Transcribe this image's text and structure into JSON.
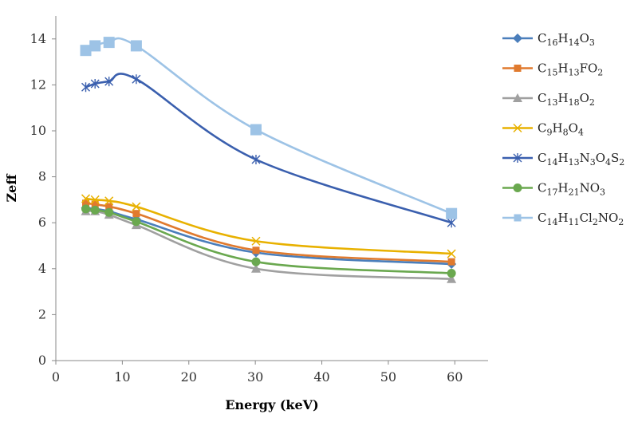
{
  "chart_data": {
    "type": "line",
    "xlabel": "Energy (keV)",
    "ylabel": "Zeff",
    "xlim": [
      0,
      65
    ],
    "ylim": [
      0,
      15
    ],
    "xticks": [
      0,
      10,
      20,
      30,
      40,
      50,
      60
    ],
    "yticks": [
      0,
      2,
      4,
      6,
      8,
      10,
      12,
      14
    ],
    "grid": false,
    "legend_position": "right",
    "x": [
      4.5,
      5.9,
      8.0,
      12.1,
      30.1,
      59.5
    ],
    "series": [
      {
        "name": "C16H14O3",
        "label_parts": [
          [
            "C",
            ""
          ],
          [
            "16",
            "sub"
          ],
          [
            "H",
            ""
          ],
          [
            "14",
            "sub"
          ],
          [
            "O",
            ""
          ],
          [
            "3",
            "sub"
          ]
        ],
        "color": "#4a7ebb",
        "marker": "diamond",
        "values": [
          6.65,
          6.6,
          6.5,
          6.15,
          4.7,
          4.2
        ]
      },
      {
        "name": "C15H13FO2",
        "label_parts": [
          [
            "C",
            ""
          ],
          [
            "15",
            "sub"
          ],
          [
            "H",
            ""
          ],
          [
            "13",
            "sub"
          ],
          [
            "FO",
            ""
          ],
          [
            "2",
            "sub"
          ]
        ],
        "color": "#e07a2e",
        "marker": "square",
        "values": [
          6.85,
          6.8,
          6.7,
          6.4,
          4.8,
          4.3
        ]
      },
      {
        "name": "C13H18O2",
        "label_parts": [
          [
            "C",
            ""
          ],
          [
            "13",
            "sub"
          ],
          [
            "H",
            ""
          ],
          [
            "18",
            "sub"
          ],
          [
            "O",
            ""
          ],
          [
            "2",
            "sub"
          ]
        ],
        "color": "#a0a0a0",
        "marker": "triangle",
        "values": [
          6.5,
          6.5,
          6.35,
          5.9,
          4.0,
          3.55
        ]
      },
      {
        "name": "C9H8O4",
        "label_parts": [
          [
            "C",
            ""
          ],
          [
            "9",
            "sub"
          ],
          [
            "H",
            ""
          ],
          [
            "8",
            "sub"
          ],
          [
            "O",
            ""
          ],
          [
            "4",
            "sub"
          ]
        ],
        "color": "#e8b100",
        "marker": "x",
        "values": [
          7.05,
          7.0,
          6.95,
          6.7,
          5.2,
          4.65
        ]
      },
      {
        "name": "C14H13N3O4S2",
        "label_parts": [
          [
            "C",
            ""
          ],
          [
            "14",
            "sub"
          ],
          [
            "H",
            ""
          ],
          [
            "13",
            "sub"
          ],
          [
            "N",
            ""
          ],
          [
            "3",
            "sub"
          ],
          [
            "O",
            ""
          ],
          [
            "4",
            "sub"
          ],
          [
            "S",
            ""
          ],
          [
            "2",
            "sub"
          ]
        ],
        "color": "#3a5fae",
        "marker": "asterisk",
        "values": [
          11.9,
          12.05,
          12.15,
          12.25,
          8.75,
          6.0
        ]
      },
      {
        "name": "C17H21NO3",
        "label_parts": [
          [
            "C",
            ""
          ],
          [
            "17",
            "sub"
          ],
          [
            "H",
            ""
          ],
          [
            "21",
            "sub"
          ],
          [
            "NO",
            ""
          ],
          [
            "3",
            "sub"
          ]
        ],
        "color": "#6aa84f",
        "marker": "circle",
        "values": [
          6.6,
          6.55,
          6.45,
          6.05,
          4.3,
          3.8
        ]
      },
      {
        "name": "C14H11Cl2NO2",
        "label_parts": [
          [
            "C",
            ""
          ],
          [
            "14",
            "sub"
          ],
          [
            "H",
            ""
          ],
          [
            "11",
            "sub"
          ],
          [
            "Cl",
            ""
          ],
          [
            "2",
            "sub"
          ],
          [
            "NO",
            ""
          ],
          [
            "2",
            "sub"
          ]
        ],
        "color": "#9dc3e6",
        "marker": "bigsquare",
        "values": [
          13.5,
          13.7,
          13.85,
          13.7,
          10.05,
          6.4
        ]
      }
    ]
  }
}
